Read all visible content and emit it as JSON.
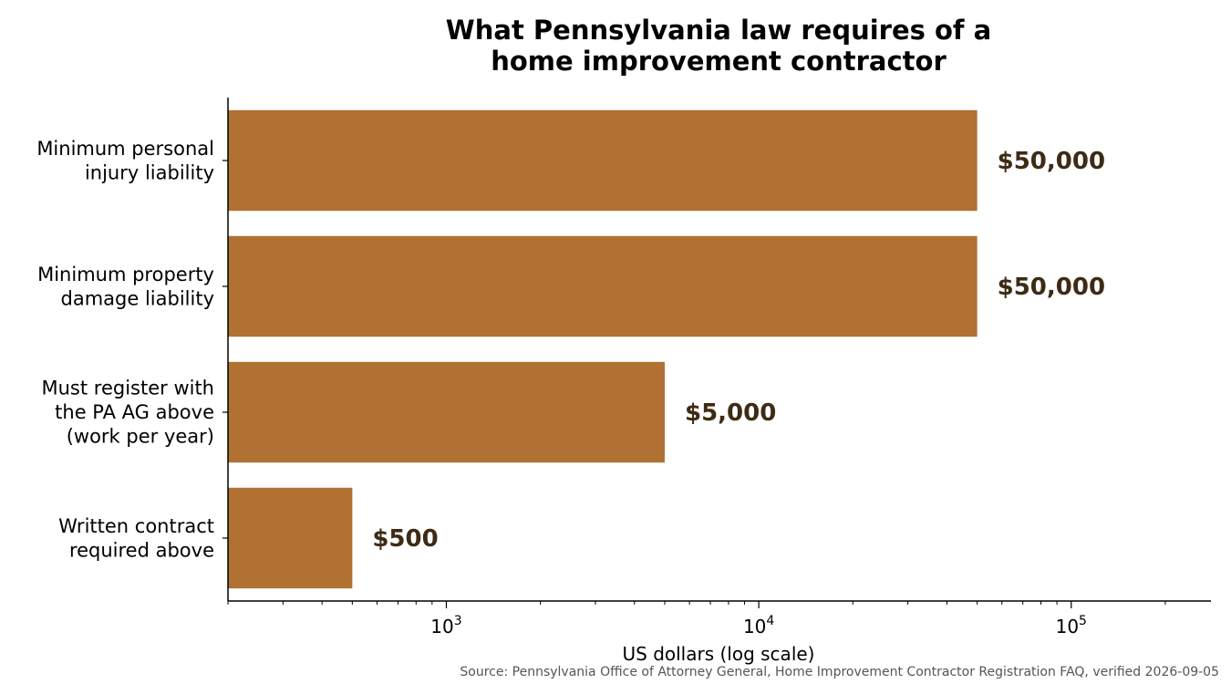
{
  "chart_data": {
    "type": "bar",
    "orientation": "horizontal",
    "title": "What Pennsylvania law requires of a\nhome improvement contractor",
    "xlabel": "US dollars (log scale)",
    "ylabel": "",
    "xscale": "log",
    "xlim": [
      200,
      280000
    ],
    "categories": [
      [
        "Minimum personal",
        "injury liability"
      ],
      [
        "Minimum property",
        "damage liability"
      ],
      [
        "Must register with",
        "the PA AG above",
        "(work per year)"
      ],
      [
        "Written contract",
        "required above"
      ]
    ],
    "values": [
      50000,
      50000,
      5000,
      500
    ],
    "data_labels": [
      "$50,000",
      "$50,000",
      "$5,000",
      "$500"
    ],
    "x_ticks": [
      {
        "value": 1000,
        "base": "10",
        "exp": "3"
      },
      {
        "value": 10000,
        "base": "10",
        "exp": "4"
      },
      {
        "value": 100000,
        "base": "10",
        "exp": "5"
      }
    ],
    "grid": false,
    "legend": "none",
    "colors": {
      "bar": "#b07133",
      "data_label": "#3d2b14",
      "axis": "#000000"
    }
  },
  "source": "Source: Pennsylvania Office of Attorney General, Home Improvement Contractor Registration FAQ, verified 2026-09-05"
}
